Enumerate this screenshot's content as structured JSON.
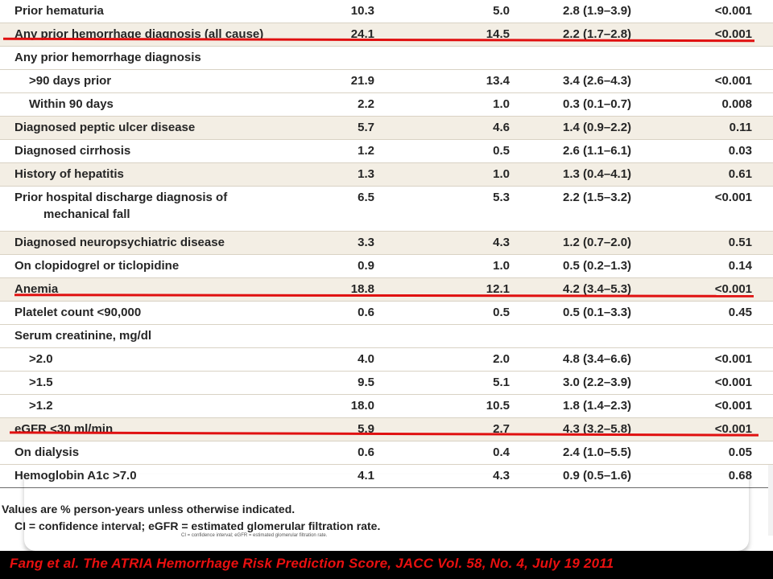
{
  "rows": [
    {
      "label": "Prior hematuria",
      "v1": "10.3",
      "v2": "5.0",
      "v3": "2.8 (1.9–3.9)",
      "v4": "<0.001"
    },
    {
      "label": "Any prior hemorrhage diagnosis (all cause)",
      "v1": "24.1",
      "v2": "14.5",
      "v3": "2.2 (1.7–2.8)",
      "v4": "<0.001"
    },
    {
      "label": "Any prior hemorrhage diagnosis",
      "v1": "",
      "v2": "",
      "v3": "",
      "v4": ""
    },
    {
      "label": ">90 days prior",
      "v1": "21.9",
      "v2": "13.4",
      "v3": "3.4 (2.6–4.3)",
      "v4": "<0.001"
    },
    {
      "label": "Within 90 days",
      "v1": "2.2",
      "v2": "1.0",
      "v3": "0.3 (0.1–0.7)",
      "v4": "0.008"
    },
    {
      "label": "Diagnosed peptic ulcer disease",
      "v1": "5.7",
      "v2": "4.6",
      "v3": "1.4 (0.9–2.2)",
      "v4": "0.11"
    },
    {
      "label": "Diagnosed cirrhosis",
      "v1": "1.2",
      "v2": "0.5",
      "v3": "2.6 (1.1–6.1)",
      "v4": "0.03"
    },
    {
      "label": "History of hepatitis",
      "v1": "1.3",
      "v2": "1.0",
      "v3": "1.3 (0.4–4.1)",
      "v4": "0.61"
    },
    {
      "label": "Prior hospital discharge diagnosis of",
      "label2": "mechanical fall",
      "v1": "6.5",
      "v2": "5.3",
      "v3": "2.2 (1.5–3.2)",
      "v4": "<0.001"
    },
    {
      "label": "Diagnosed neuropsychiatric disease",
      "v1": "3.3",
      "v2": "4.3",
      "v3": "1.2 (0.7–2.0)",
      "v4": "0.51"
    },
    {
      "label": "On clopidogrel or ticlopidine",
      "v1": "0.9",
      "v2": "1.0",
      "v3": "0.5 (0.2–1.3)",
      "v4": "0.14"
    },
    {
      "label": "Anemia",
      "v1": "18.8",
      "v2": "12.1",
      "v3": "4.2 (3.4–5.3)",
      "v4": "<0.001"
    },
    {
      "label": "Platelet count <90,000",
      "v1": "0.6",
      "v2": "0.5",
      "v3": "0.5 (0.1–3.3)",
      "v4": "0.45"
    },
    {
      "label": "Serum creatinine, mg/dl",
      "v1": "",
      "v2": "",
      "v3": "",
      "v4": ""
    },
    {
      "label": ">2.0",
      "v1": "4.0",
      "v2": "2.0",
      "v3": "4.8 (3.4–6.6)",
      "v4": "<0.001"
    },
    {
      "label": ">1.5",
      "v1": "9.5",
      "v2": "5.1",
      "v3": "3.0 (2.2–3.9)",
      "v4": "<0.001"
    },
    {
      "label": ">1.2",
      "v1": "18.0",
      "v2": "10.5",
      "v3": "1.8 (1.4–2.3)",
      "v4": "<0.001"
    },
    {
      "label": "eGFR <30 ml/min",
      "v1": "5.9",
      "v2": "2.7",
      "v3": "4.3 (3.2–5.8)",
      "v4": "<0.001"
    },
    {
      "label": "On dialysis",
      "v1": "0.6",
      "v2": "0.4",
      "v3": "2.4 (1.0–5.5)",
      "v4": "0.05"
    },
    {
      "label": "Hemoglobin A1c >7.0",
      "v1": "4.1",
      "v2": "4.3",
      "v3": "0.9 (0.5–1.6)",
      "v4": "0.68"
    }
  ],
  "notes": {
    "line1": "Values are % person-years unless otherwise indicated.",
    "line2": "CI = confidence interval; eGFR = estimated glomerular filtration rate."
  },
  "footer": "Fang et al. The ATRIA Hemorrhage Risk Prediction Score, JACC Vol. 58, No. 4, July 19 2011",
  "colors": {
    "highlight_line": "#e01010",
    "footer_bg": "#000000",
    "footer_text": "#e81010",
    "row_shade": "#f3eee4"
  }
}
